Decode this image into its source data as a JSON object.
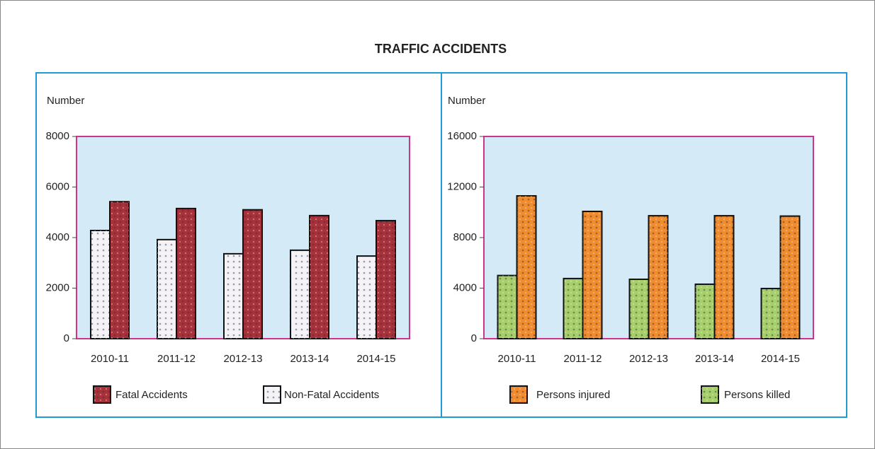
{
  "title": "TRAFFIC ACCIDENTS",
  "chart_data": [
    {
      "type": "bar",
      "ylabel": "Number",
      "categories": [
        "2010-11",
        "2011-12",
        "2012-13",
        "2013-14",
        "2014-15"
      ],
      "series": [
        {
          "name": "Non-Fatal Accidents",
          "color": "#f4f2f4",
          "values": [
            4280,
            3920,
            3360,
            3500,
            3270
          ]
        },
        {
          "name": "Fatal Accidents",
          "color": "#a8323a",
          "values": [
            5420,
            5150,
            5100,
            4870,
            4670
          ]
        }
      ],
      "ylim": [
        0,
        8000
      ],
      "yticks": [
        0,
        2000,
        4000,
        6000,
        8000
      ],
      "legend": "bottom"
    },
    {
      "type": "bar",
      "ylabel": "Number",
      "categories": [
        "2010-11",
        "2011-12",
        "2012-13",
        "2013-14",
        "2014-15"
      ],
      "series": [
        {
          "name": "Persons killed",
          "color": "#a6cf6a",
          "values": [
            5000,
            4760,
            4700,
            4310,
            3970
          ]
        },
        {
          "name": "Persons injured",
          "color": "#f08c2e",
          "values": [
            11300,
            10070,
            9730,
            9730,
            9700
          ]
        }
      ],
      "ylim": [
        0,
        16000
      ],
      "yticks": [
        0,
        4000,
        8000,
        12000,
        16000
      ],
      "legend": "bottom"
    }
  ]
}
